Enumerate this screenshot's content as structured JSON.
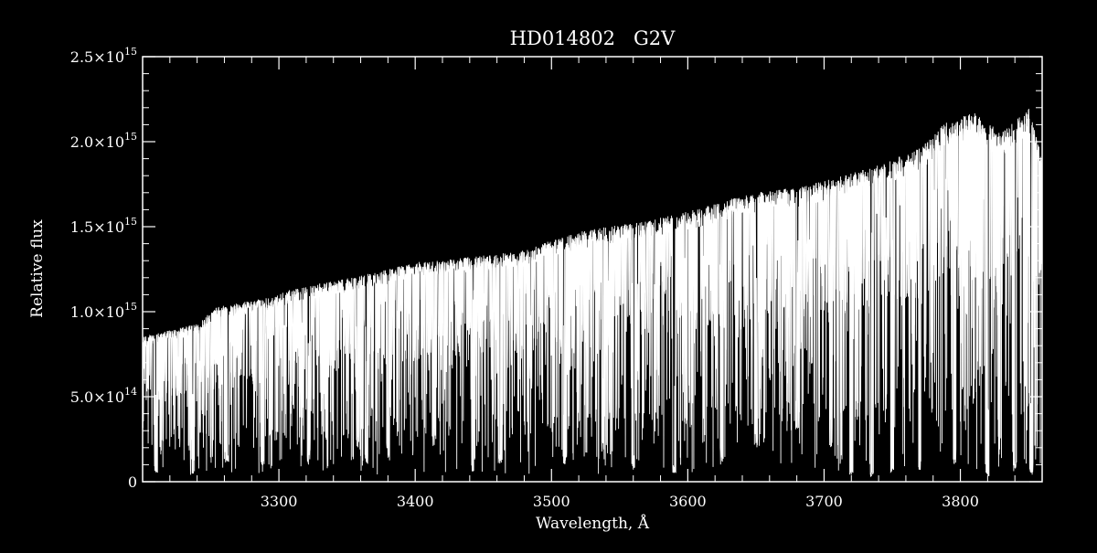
{
  "chart_data": {
    "type": "line",
    "title": "HD014802   G2V",
    "xlabel": "Wavelength, Å",
    "ylabel": "Relative flux",
    "xlim": [
      3200,
      3860
    ],
    "ylim": [
      0,
      2500000000000000.0
    ],
    "x_ticks": [
      {
        "value": 3300,
        "label": "3300"
      },
      {
        "value": 3400,
        "label": "3400"
      },
      {
        "value": 3500,
        "label": "3500"
      },
      {
        "value": 3600,
        "label": "3600"
      },
      {
        "value": 3700,
        "label": "3700"
      },
      {
        "value": 3800,
        "label": "3800"
      }
    ],
    "y_ticks": [
      {
        "value": 0,
        "mantissa": "0",
        "exponent": ""
      },
      {
        "value": 500000000000000.0,
        "mantissa": "5.0×10",
        "exponent": "14"
      },
      {
        "value": 1000000000000000.0,
        "mantissa": "1.0×10",
        "exponent": "15"
      },
      {
        "value": 1500000000000000.0,
        "mantissa": "1.5×10",
        "exponent": "15"
      },
      {
        "value": 2000000000000000.0,
        "mantissa": "2.0×10",
        "exponent": "15"
      },
      {
        "value": 2500000000000000.0,
        "mantissa": "2.5×10",
        "exponent": "15"
      }
    ],
    "series": [
      {
        "continuum_x": [
          3200,
          3220,
          3240,
          3255,
          3270,
          3290,
          3310,
          3340,
          3370,
          3400,
          3420,
          3450,
          3480,
          3500,
          3520,
          3540,
          3560,
          3590,
          3610,
          3630,
          3650,
          3670,
          3690,
          3710,
          3730,
          3750,
          3770,
          3790,
          3810,
          3830,
          3850,
          3860
        ],
        "continuum_y": [
          850000000000000.0,
          890000000000000.0,
          930000000000000.0,
          1030000000000000.0,
          1050000000000000.0,
          1080000000000000.0,
          1130000000000000.0,
          1180000000000000.0,
          1230000000000000.0,
          1290000000000000.0,
          1310000000000000.0,
          1330000000000000.0,
          1360000000000000.0,
          1420000000000000.0,
          1470000000000000.0,
          1500000000000000.0,
          1520000000000000.0,
          1570000000000000.0,
          1610000000000000.0,
          1660000000000000.0,
          1700000000000000.0,
          1720000000000000.0,
          1750000000000000.0,
          1790000000000000.0,
          1840000000000000.0,
          1900000000000000.0,
          1960000000000000.0,
          2120000000000000.0,
          2180000000000000.0,
          2050000000000000.0,
          2200000000000000.0,
          1900000000000000.0
        ],
        "line_minima_x": [
          3210,
          3236,
          3262,
          3288,
          3322,
          3358,
          3364,
          3380,
          3414,
          3442,
          3462,
          3510,
          3538,
          3560,
          3590,
          3625,
          3650,
          3680,
          3705,
          3720,
          3735,
          3750,
          3770,
          3796,
          3820,
          3840,
          3852
        ],
        "line_minima_y": [
          50000000000000.0,
          40000000000000.0,
          80000000000000.0,
          80000000000000.0,
          100000000000000.0,
          200000000000000.0,
          100000000000000.0,
          120000000000000.0,
          200000000000000.0,
          60000000000000.0,
          100000000000000.0,
          100000000000000.0,
          140000000000000.0,
          80000000000000.0,
          50000000000000.0,
          100000000000000.0,
          200000000000000.0,
          300000000000000.0,
          200000000000000.0,
          40000000000000.0,
          30000000000000.0,
          50000000000000.0,
          60000000000000.0,
          100000000000000.0,
          30000000000000.0,
          60000000000000.0,
          40000000000000.0
        ]
      }
    ],
    "colors": {
      "background": "#000000",
      "foreground": "#ffffff"
    }
  }
}
